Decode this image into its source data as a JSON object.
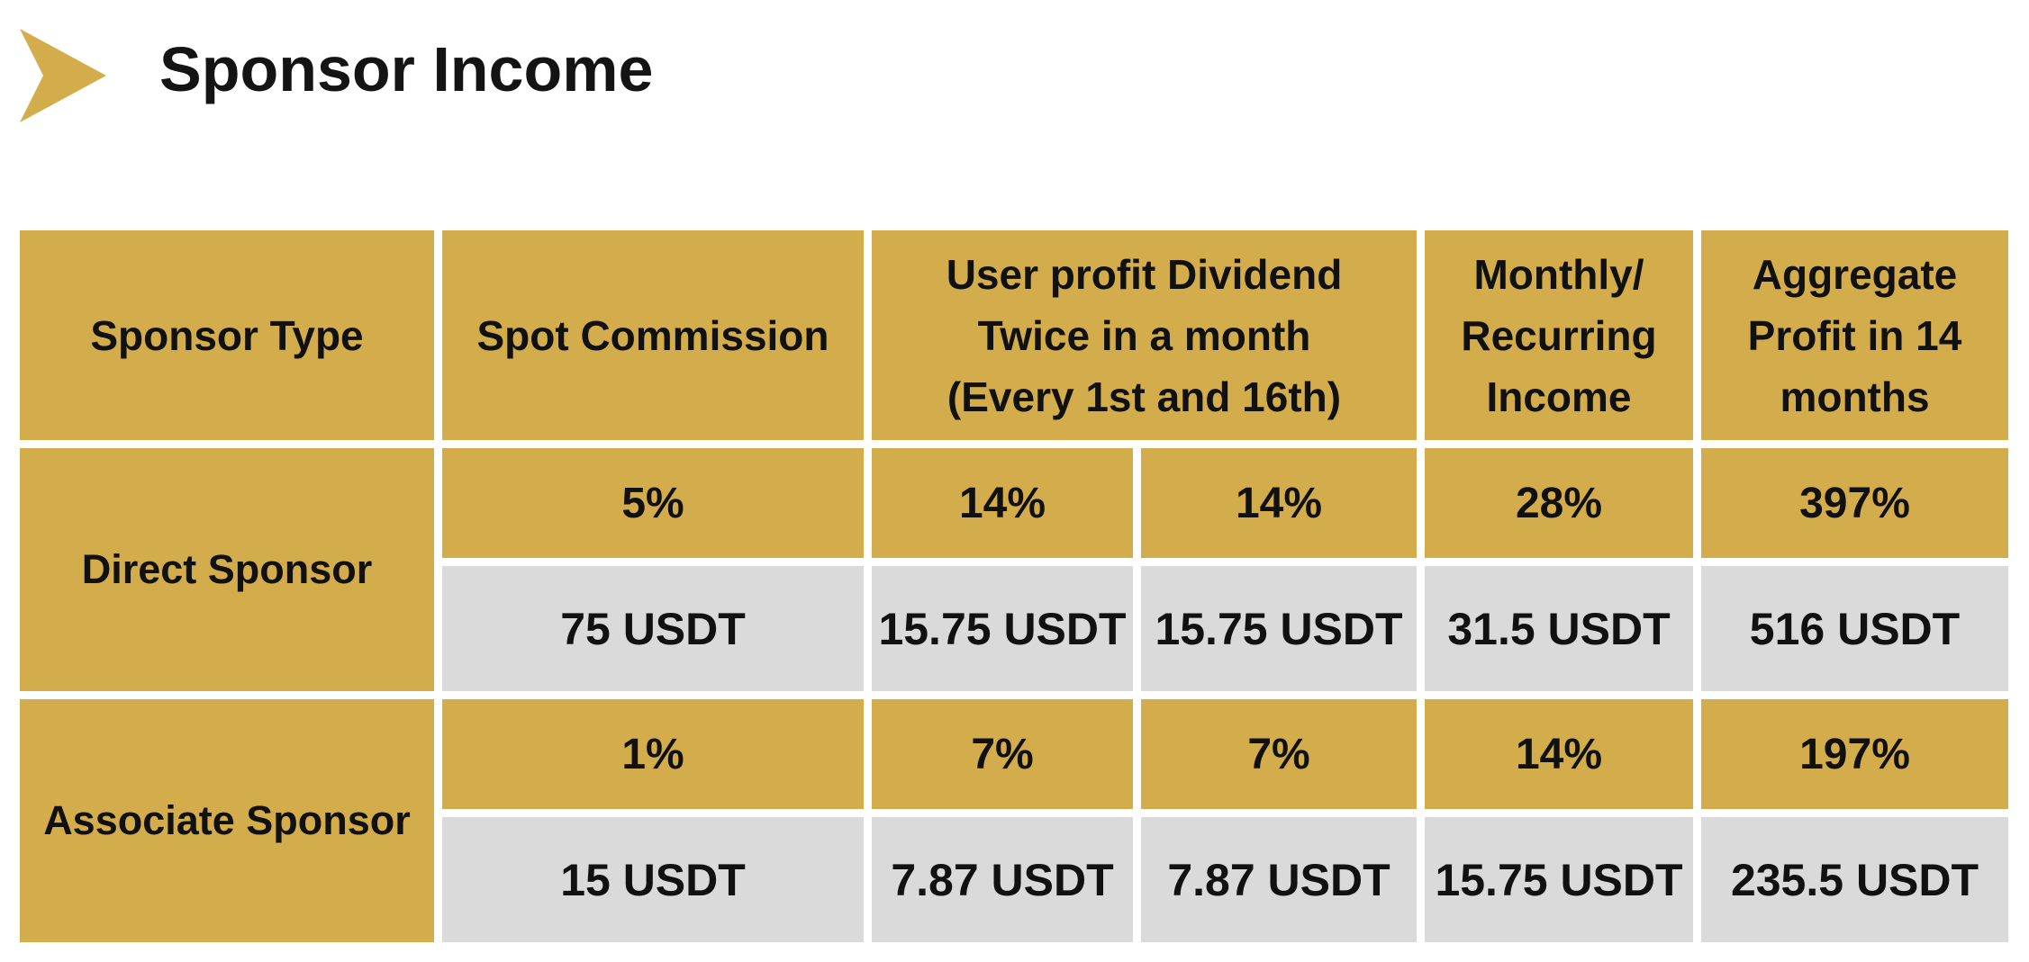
{
  "page": {
    "title": "Sponsor Income",
    "colors": {
      "gold": "#d3ad4c",
      "gray": "#dadada",
      "text": "#111111"
    },
    "icons": [
      "chevron-right-icon"
    ]
  },
  "table": {
    "headers": {
      "sponsor_type": "Sponsor Type",
      "spot_commission": "Spot Commission",
      "dividend_line1": "User profit Dividend",
      "dividend_line2": "Twice in a month",
      "dividend_line3": "(Every 1st and 16th)",
      "monthly_line1": "Monthly/",
      "monthly_line2": "Recurring",
      "monthly_line3": "Income",
      "aggregate_line1": "Aggregate",
      "aggregate_line2": "Profit in 14",
      "aggregate_line3": "months"
    },
    "rows": [
      {
        "label": "Direct Sponsor",
        "percent": {
          "spot": "5%",
          "div1": "14%",
          "div2": "14%",
          "monthly": "28%",
          "aggregate": "397%"
        },
        "usdt": {
          "spot": "75 USDT",
          "div1": "15.75 USDT",
          "div2": "15.75 USDT",
          "monthly": "31.5 USDT",
          "aggregate": "516 USDT"
        }
      },
      {
        "label": "Associate Sponsor",
        "percent": {
          "spot": "1%",
          "div1": "7%",
          "div2": "7%",
          "monthly": "14%",
          "aggregate": "197%"
        },
        "usdt": {
          "spot": "15 USDT",
          "div1": "7.87 USDT",
          "div2": "7.87 USDT",
          "monthly": "15.75 USDT",
          "aggregate": "235.5 USDT"
        }
      }
    ]
  }
}
